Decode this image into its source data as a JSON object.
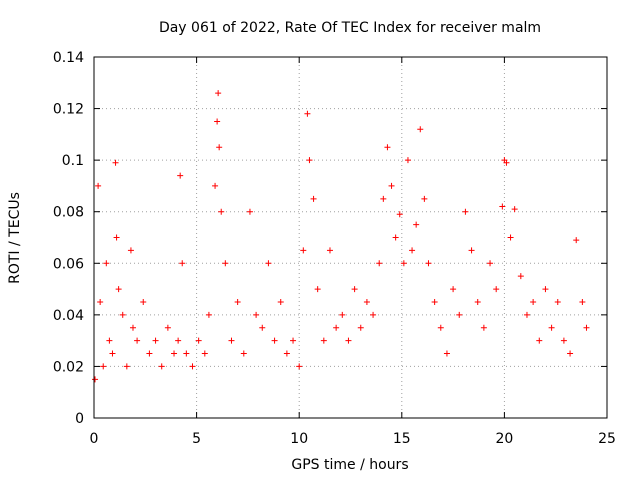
{
  "chart_data": {
    "type": "scatter",
    "title": "Day 061 of 2022, Rate Of TEC Index for receiver malm",
    "xlabel": "GPS time / hours",
    "ylabel": "ROTI / TECUs",
    "xlim": [
      0,
      25
    ],
    "ylim": [
      0,
      0.14
    ],
    "xticks": [
      0,
      5,
      10,
      15,
      20,
      25
    ],
    "xtick_labels": [
      "0",
      "5",
      "10",
      "15",
      "20",
      "25"
    ],
    "yticks": [
      0,
      0.02,
      0.04,
      0.06,
      0.08,
      0.1,
      0.12,
      0.14
    ],
    "ytick_labels": [
      "0",
      "0.02",
      "0.04",
      "0.06",
      "0.08",
      "0.1",
      "0.12",
      "0.14"
    ],
    "grid": true,
    "marker": "+",
    "color": "#ff0000",
    "series": [
      {
        "name": "ROTI",
        "x": [
          0.05,
          0.2,
          0.3,
          0.45,
          0.6,
          0.75,
          0.9,
          1.05,
          1.1,
          1.2,
          1.4,
          1.6,
          1.8,
          1.9,
          2.1,
          2.4,
          2.7,
          3.0,
          3.3,
          3.6,
          3.9,
          4.1,
          4.2,
          4.3,
          4.5,
          4.8,
          5.1,
          5.4,
          5.6,
          5.9,
          6.0,
          6.05,
          6.1,
          6.2,
          6.4,
          6.7,
          7.0,
          7.3,
          7.6,
          7.9,
          8.2,
          8.5,
          8.8,
          9.1,
          9.4,
          9.7,
          10.0,
          10.2,
          10.4,
          10.5,
          10.7,
          10.9,
          11.2,
          11.5,
          11.8,
          12.1,
          12.4,
          12.7,
          13.0,
          13.3,
          13.6,
          13.9,
          14.1,
          14.3,
          14.5,
          14.7,
          14.9,
          15.1,
          15.3,
          15.5,
          15.7,
          15.9,
          16.1,
          16.3,
          16.6,
          16.9,
          17.2,
          17.5,
          17.8,
          18.1,
          18.4,
          18.7,
          19.0,
          19.3,
          19.6,
          19.9,
          20.0,
          20.1,
          20.3,
          20.5,
          20.8,
          21.1,
          21.4,
          21.7,
          22.0,
          22.3,
          22.6,
          22.9,
          23.2,
          23.5,
          23.8,
          24.0
        ],
        "y": [
          0.015,
          0.09,
          0.045,
          0.02,
          0.06,
          0.03,
          0.025,
          0.099,
          0.07,
          0.05,
          0.04,
          0.02,
          0.065,
          0.035,
          0.03,
          0.045,
          0.025,
          0.03,
          0.02,
          0.035,
          0.025,
          0.03,
          0.094,
          0.06,
          0.025,
          0.02,
          0.03,
          0.025,
          0.04,
          0.09,
          0.115,
          0.126,
          0.105,
          0.08,
          0.06,
          0.03,
          0.045,
          0.025,
          0.08,
          0.04,
          0.035,
          0.06,
          0.03,
          0.045,
          0.025,
          0.03,
          0.02,
          0.065,
          0.118,
          0.1,
          0.085,
          0.05,
          0.03,
          0.065,
          0.035,
          0.04,
          0.03,
          0.05,
          0.035,
          0.045,
          0.04,
          0.06,
          0.085,
          0.105,
          0.09,
          0.07,
          0.079,
          0.06,
          0.1,
          0.065,
          0.075,
          0.112,
          0.085,
          0.06,
          0.045,
          0.035,
          0.025,
          0.05,
          0.04,
          0.08,
          0.065,
          0.045,
          0.035,
          0.06,
          0.05,
          0.082,
          0.1,
          0.099,
          0.07,
          0.081,
          0.055,
          0.04,
          0.045,
          0.03,
          0.05,
          0.035,
          0.045,
          0.03,
          0.025,
          0.069,
          0.045,
          0.035
        ]
      }
    ]
  }
}
